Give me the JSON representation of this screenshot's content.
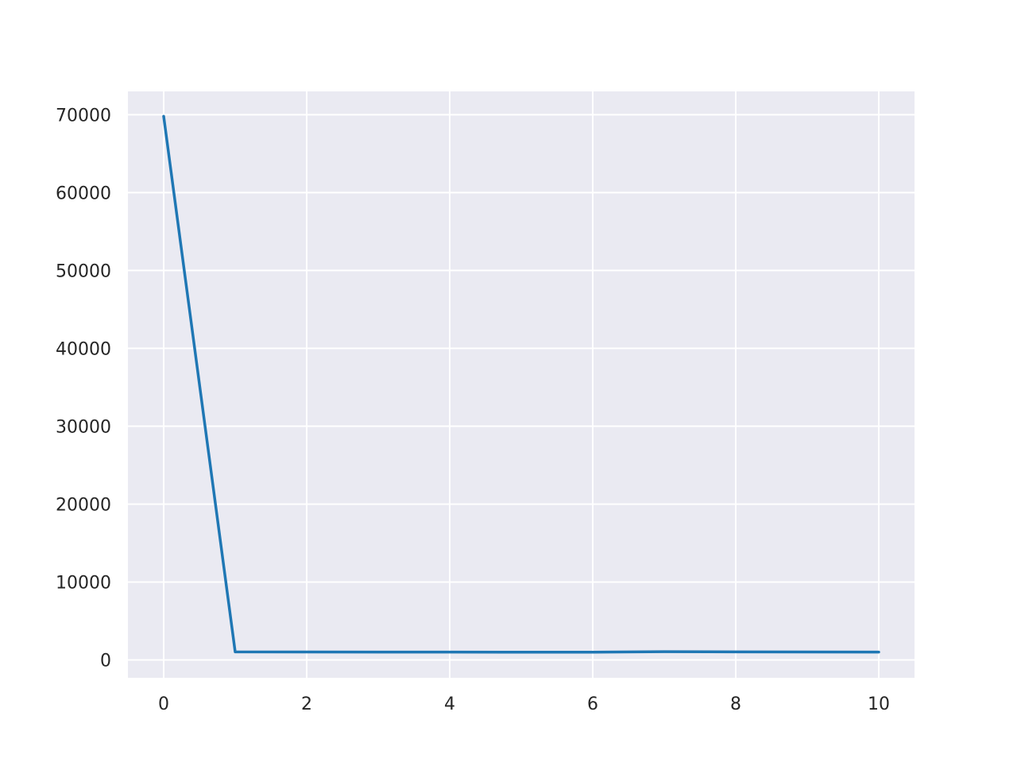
{
  "chart_data": {
    "type": "line",
    "title": "",
    "xlabel": "",
    "ylabel": "",
    "xlim": [
      -0.5,
      10.5
    ],
    "ylim": [
      -2300,
      73000
    ],
    "xticks": [
      0,
      2,
      4,
      6,
      8,
      10
    ],
    "yticks": [
      0,
      10000,
      20000,
      30000,
      40000,
      50000,
      60000,
      70000
    ],
    "grid": true,
    "legend": "none",
    "series": [
      {
        "x": [
          0,
          1,
          2,
          3,
          4,
          5,
          6,
          7,
          8,
          9,
          10
        ],
        "y": [
          69800,
          1030,
          1010,
          1000,
          1000,
          990,
          990,
          1060,
          1030,
          1010,
          1000
        ]
      }
    ],
    "colors": {
      "plot_background": "#eaeaf2",
      "grid": "#ffffff",
      "line": "#1f77b4",
      "text": "#262626"
    }
  }
}
